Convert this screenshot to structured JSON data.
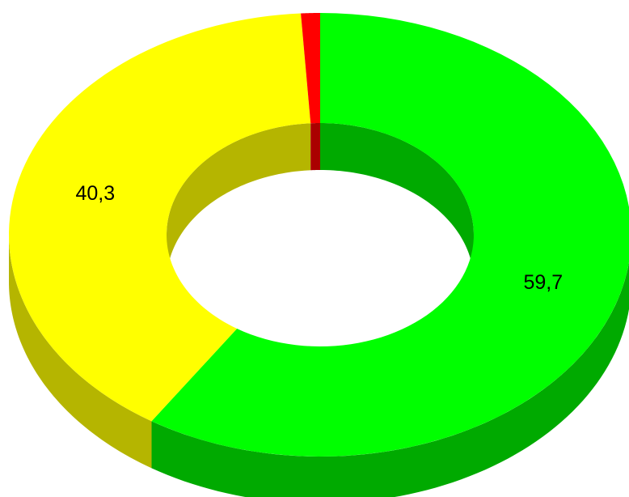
{
  "chart_data": {
    "type": "pie",
    "variant": "donut-3d",
    "slices": [
      {
        "value": 59.7,
        "label": "59,7",
        "color": "#00ff00",
        "side_color": "#00aa00"
      },
      {
        "value": 40.3,
        "label": "40,3",
        "color": "#ffff00",
        "side_color": "#b5b500"
      },
      {
        "value": 1.0,
        "label": "",
        "color": "#ff0000",
        "side_color": "#aa0000"
      }
    ],
    "title": "",
    "legend": "none"
  }
}
